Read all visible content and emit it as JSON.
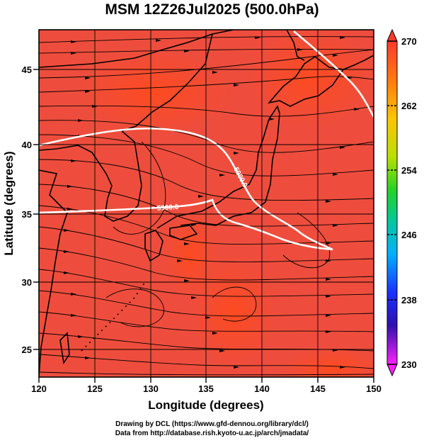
{
  "title": "MSM 12Z26Jul2025 (500.0hPa)",
  "xlabel": "Longitude (degrees)",
  "ylabel": "Latitude  (degrees)",
  "x_ticks": [
    "120",
    "125",
    "130",
    "135",
    "140",
    "145",
    "150"
  ],
  "y_ticks": [
    "25",
    "30",
    "35",
    "40",
    "45"
  ],
  "colorbar_ticks": [
    "270",
    "262",
    "254",
    "246",
    "238",
    "230"
  ],
  "contour_labels": [
    "5900.0",
    "5900.0"
  ],
  "credit": {
    "line1": "Drawing by DCL (https://www.gfd-dennou.org/library/dcl/)",
    "line2": "Data from http://database.rish.kyoto-u.ac.jp/arch/jmadata/"
  },
  "colors": {
    "field_main": "#ee4d3d",
    "field_warm": "#ff4a1e",
    "contour": "#ffffff",
    "coast": "#000000"
  },
  "chart_data": {
    "type": "heatmap",
    "xlim": [
      120,
      150
    ],
    "ylim": [
      22.5,
      47.5
    ],
    "colorbar_range": [
      230,
      270
    ],
    "grid": true,
    "contour_level": 5900.0
  }
}
